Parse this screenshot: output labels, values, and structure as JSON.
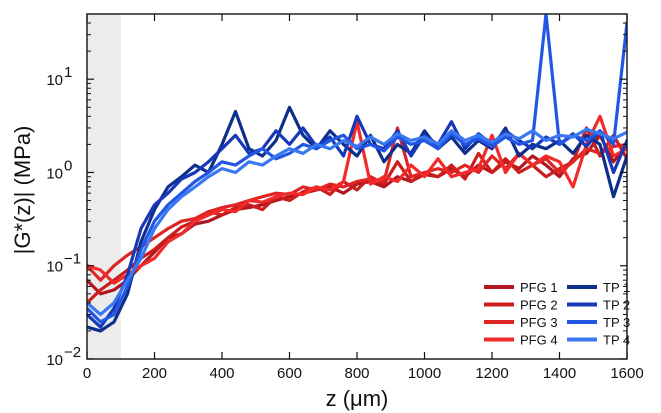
{
  "chart_data": {
    "type": "line",
    "title": "",
    "xlabel": "z (μm)",
    "ylabel": "|G*(z)| (MPa)",
    "xlim": [
      0,
      1600
    ],
    "ylim": [
      0.01,
      50
    ],
    "yscale": "log",
    "grid": false,
    "legend": "bottom-right",
    "x_ticks": [
      0,
      200,
      400,
      600,
      800,
      1000,
      1200,
      1400,
      1600
    ],
    "x_tick_labels": [
      "0",
      "200",
      "400",
      "600",
      "800",
      "1000",
      "1200",
      "1400",
      "1600"
    ],
    "y_ticks": [
      0.01,
      0.1,
      1,
      10
    ],
    "y_tick_labels": [
      {
        "base": "10",
        "exp": "−2"
      },
      {
        "base": "10",
        "exp": "−1"
      },
      {
        "base": "10",
        "exp": "0"
      },
      {
        "base": "10",
        "exp": "1"
      }
    ],
    "shaded_region": {
      "x_start": 0,
      "x_end": 100,
      "color": "#ececec"
    },
    "series": [
      {
        "name": "PFG 1",
        "color": "#b0171f",
        "x": [
          0,
          40,
          80,
          120,
          160,
          200,
          240,
          280,
          320,
          360,
          400,
          440,
          480,
          520,
          560,
          600,
          640,
          680,
          720,
          760,
          800,
          840,
          880,
          920,
          960,
          1000,
          1040,
          1080,
          1120,
          1160,
          1200,
          1240,
          1280,
          1320,
          1360,
          1400,
          1440,
          1480,
          1520,
          1560,
          1600
        ],
        "values": [
          0.07,
          0.05,
          0.055,
          0.07,
          0.1,
          0.14,
          0.2,
          0.22,
          0.28,
          0.3,
          0.35,
          0.4,
          0.42,
          0.45,
          0.5,
          0.55,
          0.6,
          0.65,
          0.7,
          0.6,
          0.75,
          0.8,
          0.7,
          0.9,
          0.8,
          0.95,
          0.9,
          1.1,
          0.9,
          1.2,
          1.0,
          1.3,
          1.1,
          1.5,
          1.2,
          0.9,
          1.4,
          1.6,
          2.5,
          1.3,
          2.0
        ]
      },
      {
        "name": "PFG 2",
        "color": "#cc1d1d",
        "x": [
          0,
          40,
          80,
          120,
          160,
          200,
          240,
          280,
          320,
          360,
          400,
          440,
          480,
          520,
          560,
          600,
          640,
          680,
          720,
          760,
          800,
          840,
          880,
          920,
          960,
          1000,
          1040,
          1080,
          1120,
          1160,
          1200,
          1240,
          1280,
          1320,
          1360,
          1400,
          1440,
          1480,
          1520,
          1560,
          1600
        ],
        "values": [
          0.04,
          0.055,
          0.07,
          0.09,
          0.12,
          0.15,
          0.2,
          0.26,
          0.3,
          0.38,
          0.35,
          0.42,
          0.45,
          0.4,
          0.55,
          0.5,
          0.62,
          0.7,
          0.58,
          0.8,
          0.65,
          0.9,
          0.75,
          1.3,
          0.8,
          1.0,
          0.9,
          1.2,
          0.85,
          1.6,
          1.0,
          1.4,
          1.0,
          1.2,
          0.9,
          1.1,
          1.3,
          3.0,
          1.5,
          2.5,
          1.4
        ]
      },
      {
        "name": "PFG 3",
        "color": "#e02323",
        "x": [
          0,
          40,
          80,
          120,
          160,
          200,
          240,
          280,
          320,
          360,
          400,
          440,
          480,
          520,
          560,
          600,
          640,
          680,
          720,
          760,
          800,
          840,
          880,
          920,
          960,
          1000,
          1040,
          1080,
          1120,
          1160,
          1200,
          1240,
          1280,
          1320,
          1360,
          1400,
          1440,
          1480,
          1520,
          1560,
          1600
        ],
        "values": [
          0.1,
          0.07,
          0.1,
          0.13,
          0.16,
          0.2,
          0.25,
          0.3,
          0.32,
          0.38,
          0.42,
          0.45,
          0.5,
          0.55,
          0.6,
          0.58,
          0.7,
          0.65,
          0.75,
          0.7,
          0.8,
          0.85,
          0.8,
          3.0,
          0.9,
          1.0,
          1.1,
          1.0,
          1.2,
          1.0,
          1.5,
          1.1,
          1.6,
          1.2,
          1.4,
          1.0,
          1.3,
          1.8,
          1.6,
          1.9,
          2.0
        ]
      },
      {
        "name": "PFG 4",
        "color": "#f22a2a",
        "x": [
          0,
          40,
          80,
          120,
          160,
          200,
          240,
          280,
          320,
          360,
          400,
          440,
          480,
          520,
          560,
          600,
          640,
          680,
          720,
          760,
          800,
          840,
          880,
          920,
          960,
          1000,
          1040,
          1080,
          1120,
          1160,
          1200,
          1240,
          1280,
          1320,
          1360,
          1400,
          1440,
          1480,
          1520,
          1560,
          1600
        ],
        "values": [
          0.1,
          0.09,
          0.065,
          0.08,
          0.1,
          0.12,
          0.18,
          0.22,
          0.3,
          0.35,
          0.4,
          0.38,
          0.5,
          0.48,
          0.55,
          0.6,
          0.58,
          0.7,
          0.65,
          0.8,
          3.5,
          0.75,
          0.9,
          0.8,
          1.2,
          0.9,
          1.4,
          0.9,
          1.0,
          1.1,
          2.5,
          1.0,
          1.6,
          1.2,
          1.5,
          1.3,
          0.7,
          2.0,
          4.0,
          1.5,
          1.8
        ]
      },
      {
        "name": "TP 1",
        "color": "#0d2f8c",
        "x": [
          0,
          40,
          80,
          120,
          160,
          200,
          240,
          280,
          320,
          360,
          400,
          440,
          480,
          520,
          560,
          600,
          640,
          680,
          720,
          760,
          800,
          840,
          880,
          920,
          960,
          1000,
          1040,
          1080,
          1120,
          1160,
          1200,
          1240,
          1280,
          1320,
          1360,
          1400,
          1440,
          1480,
          1520,
          1560,
          1600
        ],
        "values": [
          0.022,
          0.02,
          0.025,
          0.05,
          0.18,
          0.4,
          0.7,
          0.9,
          1.2,
          1.0,
          2.0,
          4.5,
          1.8,
          1.5,
          2.2,
          5.0,
          2.5,
          1.8,
          2.8,
          2.0,
          1.5,
          2.5,
          1.3,
          2.0,
          1.6,
          2.8,
          1.8,
          2.4,
          1.6,
          2.2,
          1.8,
          3.0,
          1.5,
          2.0,
          1.8,
          2.2,
          1.6,
          2.5,
          2.0,
          0.55,
          1.5
        ]
      },
      {
        "name": "TP 2",
        "color": "#1738b8",
        "x": [
          0,
          40,
          80,
          120,
          160,
          200,
          240,
          280,
          320,
          360,
          400,
          440,
          480,
          520,
          560,
          600,
          640,
          680,
          720,
          760,
          800,
          840,
          880,
          920,
          960,
          1000,
          1040,
          1080,
          1120,
          1160,
          1200,
          1240,
          1280,
          1320,
          1360,
          1400,
          1440,
          1480,
          1520,
          1560,
          1600
        ],
        "values": [
          0.03,
          0.022,
          0.035,
          0.08,
          0.25,
          0.45,
          0.6,
          0.85,
          1.0,
          1.3,
          1.8,
          2.5,
          1.6,
          1.8,
          2.8,
          2.0,
          3.0,
          1.9,
          2.4,
          1.5,
          4.0,
          2.0,
          1.8,
          2.8,
          1.5,
          2.5,
          2.0,
          3.5,
          1.8,
          2.6,
          2.0,
          2.8,
          2.2,
          1.8,
          2.4,
          2.0,
          2.6,
          1.9,
          2.8,
          1.0,
          2.2
        ]
      },
      {
        "name": "TP 3",
        "color": "#2257e6",
        "x": [
          0,
          40,
          80,
          120,
          160,
          200,
          240,
          280,
          320,
          360,
          400,
          440,
          480,
          520,
          560,
          600,
          640,
          680,
          720,
          760,
          800,
          840,
          880,
          920,
          960,
          1000,
          1040,
          1080,
          1120,
          1160,
          1200,
          1240,
          1280,
          1320,
          1360,
          1400,
          1440,
          1480,
          1520,
          1560,
          1600
        ],
        "values": [
          0.035,
          0.025,
          0.03,
          0.06,
          0.15,
          0.3,
          0.45,
          0.6,
          0.8,
          1.0,
          1.3,
          1.2,
          1.5,
          1.8,
          1.4,
          1.6,
          2.0,
          1.8,
          2.2,
          2.5,
          1.8,
          2.0,
          1.7,
          2.4,
          2.0,
          2.2,
          1.8,
          2.6,
          2.0,
          2.3,
          1.9,
          2.4,
          2.0,
          2.2,
          50.0,
          2.0,
          2.5,
          2.2,
          2.8,
          2.0,
          40.0
        ]
      },
      {
        "name": "TP 4",
        "color": "#3a78f2",
        "x": [
          0,
          40,
          80,
          120,
          160,
          200,
          240,
          280,
          320,
          360,
          400,
          440,
          480,
          520,
          560,
          600,
          640,
          680,
          720,
          760,
          800,
          840,
          880,
          920,
          960,
          1000,
          1040,
          1080,
          1120,
          1160,
          1200,
          1240,
          1280,
          1320,
          1360,
          1400,
          1440,
          1480,
          1520,
          1560,
          1600
        ],
        "values": [
          0.04,
          0.03,
          0.04,
          0.07,
          0.12,
          0.25,
          0.4,
          0.55,
          0.7,
          0.9,
          1.1,
          1.0,
          1.3,
          1.2,
          1.5,
          1.8,
          1.6,
          2.0,
          1.8,
          2.2,
          1.9,
          2.4,
          2.0,
          2.6,
          2.2,
          2.4,
          2.0,
          2.8,
          2.2,
          2.5,
          2.1,
          2.6,
          2.3,
          2.8,
          2.2,
          2.5,
          2.4,
          2.9,
          2.6,
          2.3,
          2.7
        ]
      }
    ]
  }
}
